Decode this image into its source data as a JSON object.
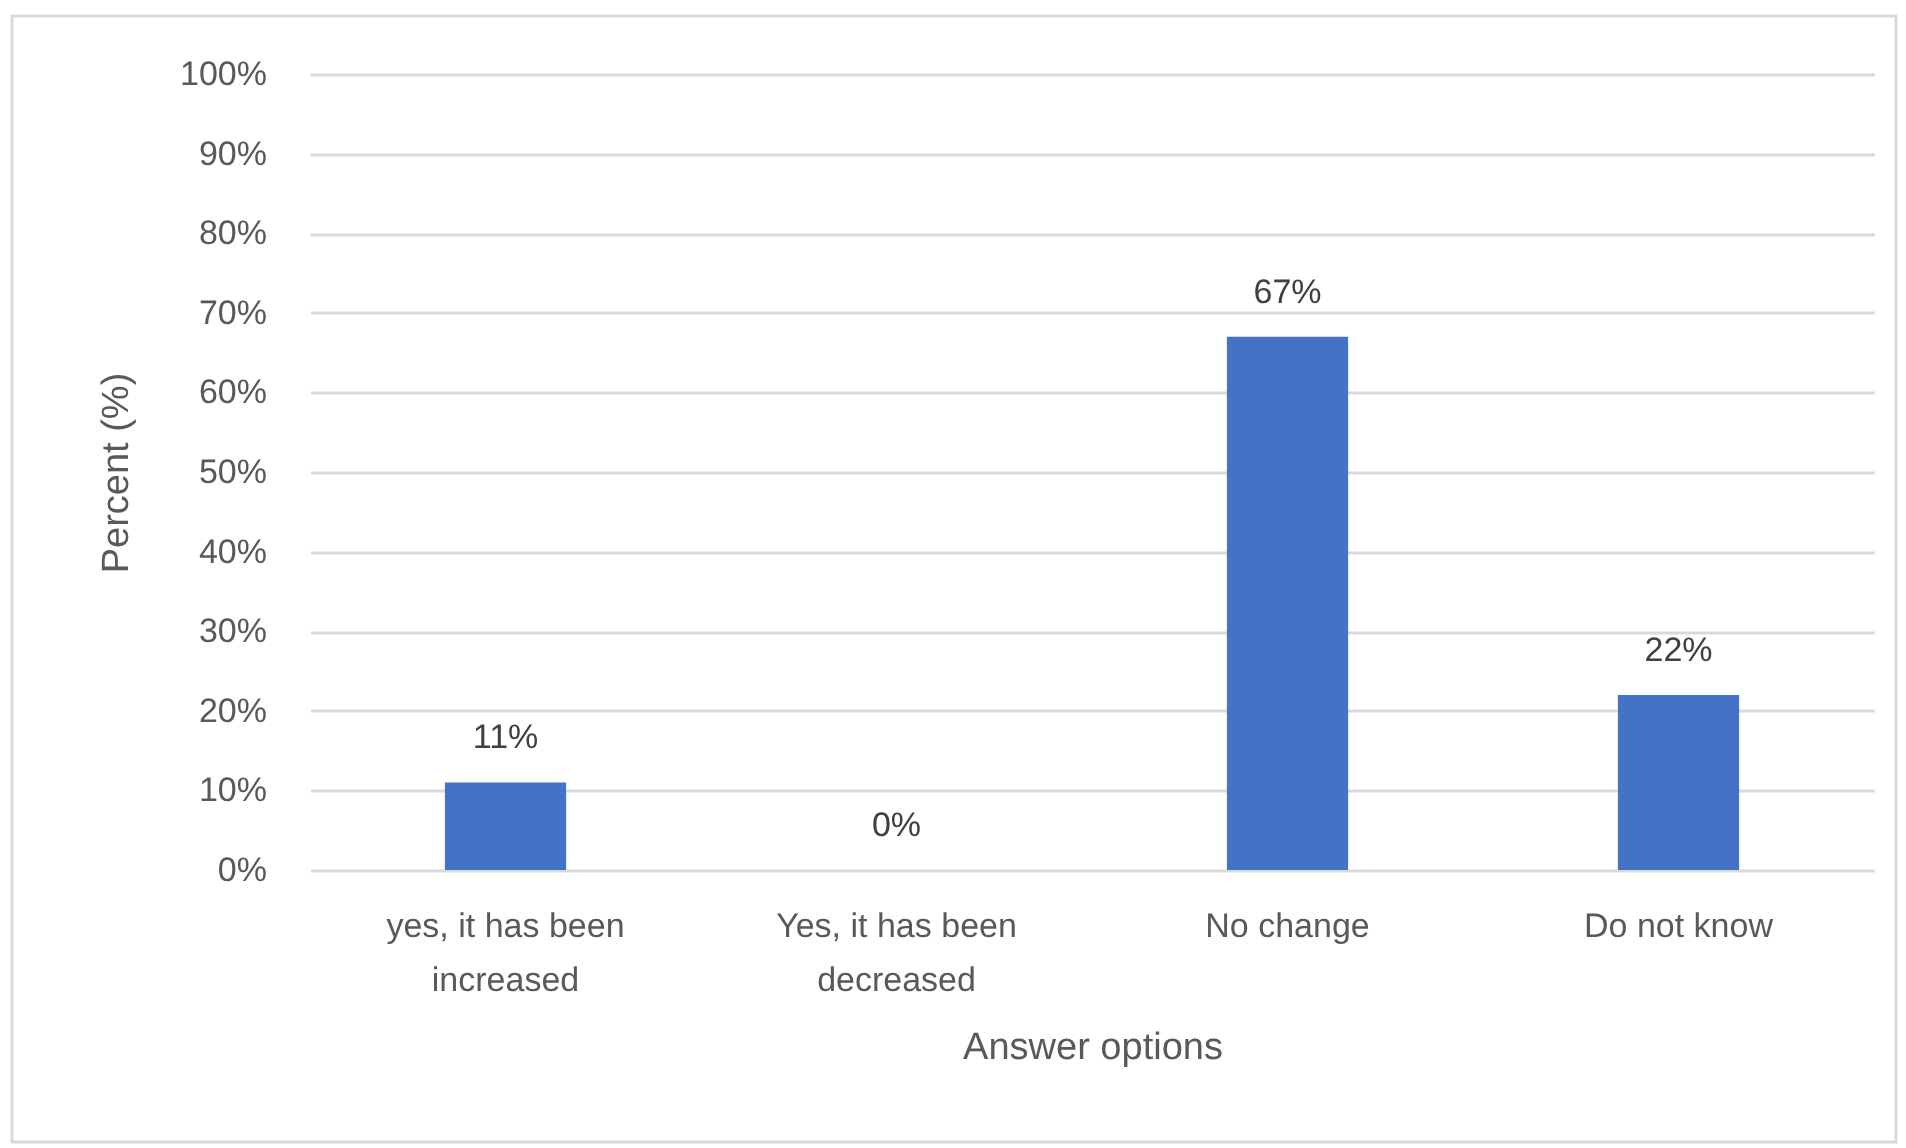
{
  "chart_data": {
    "type": "bar",
    "xlabel": "Answer options",
    "ylabel": "Percent (%)",
    "categories": [
      "yes, it has been increased",
      "Yes, it has been decreased",
      "No change",
      "Do not know"
    ],
    "values": [
      11,
      0,
      67,
      22
    ],
    "color": "#4472c4",
    "value_labels": [
      "11%",
      "0%",
      "67%",
      "22%"
    ],
    "ylim": [
      0,
      100
    ],
    "yticks": [
      {
        "value": 0,
        "label": "0%"
      },
      {
        "value": 10,
        "label": "10%"
      },
      {
        "value": 20,
        "label": "20%"
      },
      {
        "value": 30,
        "label": "30%"
      },
      {
        "value": 40,
        "label": "40%"
      },
      {
        "value": 50,
        "label": "50%"
      },
      {
        "value": 60,
        "label": "60%"
      },
      {
        "value": 70,
        "label": "70%"
      },
      {
        "value": 80,
        "label": "80%"
      },
      {
        "value": 90,
        "label": "90%"
      },
      {
        "value": 100,
        "label": "100%"
      }
    ],
    "grid": "y"
  }
}
